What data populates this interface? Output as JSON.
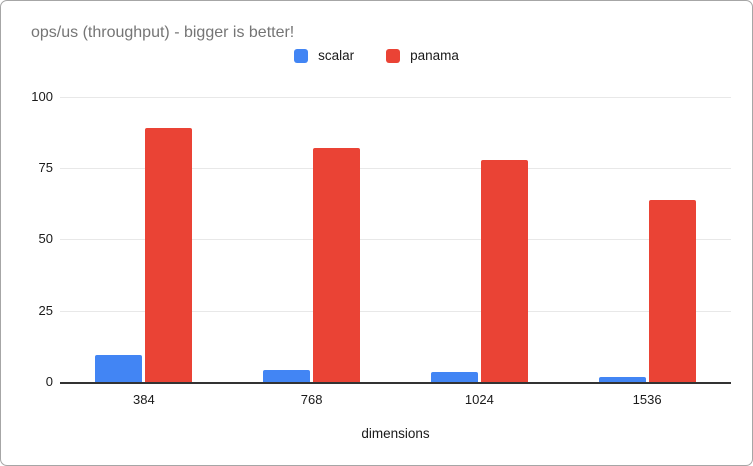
{
  "chart_data": {
    "type": "bar",
    "title": "ops/us (throughput) - bigger is better!",
    "categories": [
      "384",
      "768",
      "1024",
      "1536"
    ],
    "series": [
      {
        "name": "scalar",
        "color": "#4285F4",
        "values": [
          9.5,
          4.4,
          3.4,
          1.8
        ]
      },
      {
        "name": "panama",
        "color": "#EA4335",
        "values": [
          89,
          82,
          78,
          64
        ]
      }
    ],
    "xlabel": "dimensions",
    "ylabel": "",
    "ylim": [
      0,
      100
    ],
    "yticks": [
      0,
      25,
      50,
      75,
      100
    ],
    "grid": true,
    "legend_position": "top-center",
    "colors": {
      "title_text": "#757575",
      "tick_text": "#1a1a1a",
      "axis_line": "#333333",
      "gridline": "#e8e8e8",
      "frame_border": "#a6a6a6",
      "background": "#ffffff"
    }
  }
}
